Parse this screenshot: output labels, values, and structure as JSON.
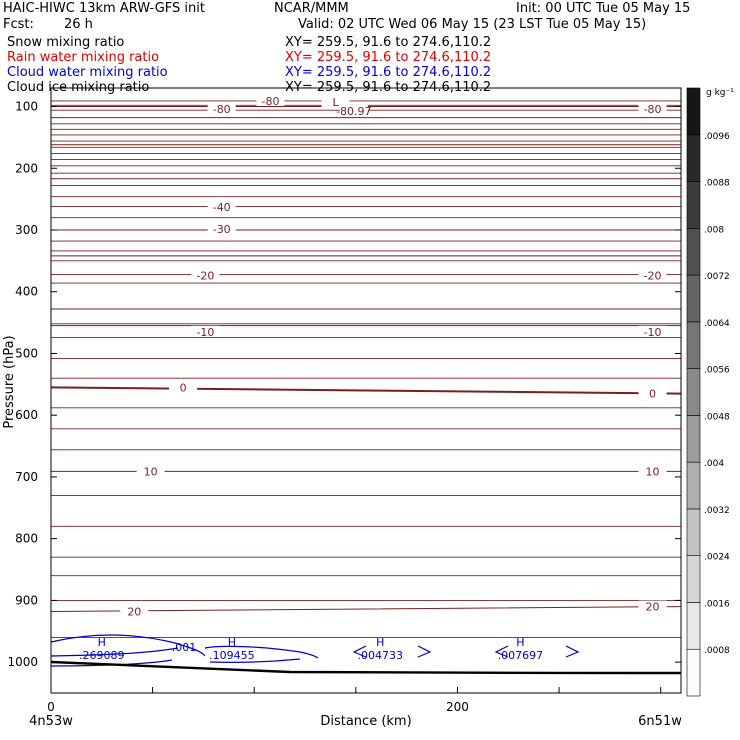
{
  "header": {
    "model": "HAIC-HIWC 13km ARW-GFS init",
    "org": "NCAR/MMM",
    "init": "Init: 00 UTC Tue 05 May 15",
    "fcst_label": "Fcst:",
    "fcst_value": "26 h",
    "valid": "Valid: 02 UTC Wed 06 May 15 (23 LST Tue 05 May 15)"
  },
  "fields": [
    {
      "name": "Snow mixing ratio",
      "xy": "XY= 259.5, 91.6 to 274.6,110.2",
      "color": "#000000"
    },
    {
      "name": "Rain water mixing ratio",
      "xy": "XY= 259.5, 91.6 to 274.6,110.2",
      "color": "#e00000"
    },
    {
      "name": "Cloud water mixing ratio",
      "xy": "XY= 259.5, 91.6 to 274.6,110.2",
      "color": "#0000e0"
    },
    {
      "name": "Cloud ice mixing ratio",
      "xy": "XY= 259.5, 91.6 to 274.6,110.2",
      "color": "#000000"
    }
  ],
  "colorbar": {
    "unit": "g kg⁻¹",
    "labels": [
      ".0008",
      ".0016",
      ".0024",
      ".0032",
      ".004",
      ".0048",
      ".0056",
      ".0064",
      ".0072",
      ".008",
      ".0088",
      ".0096"
    ]
  },
  "chart_data": {
    "type": "line",
    "title": "",
    "xlabel": "Distance (km)",
    "ylabel": "Pressure (hPa)",
    "xlim": [
      0,
      310
    ],
    "ylim": [
      1050,
      70
    ],
    "x_ticks": [
      "0",
      "200"
    ],
    "y_ticks": [
      "100",
      "200",
      "300",
      "400",
      "500",
      "600",
      "700",
      "800",
      "900",
      "1000"
    ],
    "x_endpoints": {
      "left": "4n53w",
      "right": "6n51w"
    },
    "temperature_contours": [
      {
        "label": "-80",
        "p": [
          100,
          100
        ]
      },
      {
        "label": "-40",
        "p": [
          162,
          162
        ]
      },
      {
        "label": "-30",
        "p": [
          217,
          217
        ]
      },
      {
        "label": "-20",
        "p": [
          342,
          342
        ]
      },
      {
        "label": "-10",
        "p": [
          455,
          455
        ]
      },
      {
        "label": "0",
        "p": [
          555,
          565
        ]
      },
      {
        "label": "10",
        "p": [
          691,
          691
        ]
      },
      {
        "label": "20",
        "p": [
          918,
          910
        ]
      }
    ],
    "contour_labels": [
      {
        "text": "-80",
        "x": 108,
        "p": 91
      },
      {
        "text": "-80",
        "x": 84,
        "p": 104
      },
      {
        "text": "-80",
        "x": 296,
        "p": 104
      },
      {
        "text": "L",
        "x": 140,
        "p": 93
      },
      {
        "text": "-80.97",
        "x": 149,
        "p": 107
      },
      {
        "text": "-40",
        "x": 84,
        "p": 263
      },
      {
        "text": "-30",
        "x": 84,
        "p": 298
      },
      {
        "text": "-20",
        "x": 76,
        "p": 374
      },
      {
        "text": "-20",
        "x": 296,
        "p": 374
      },
      {
        "text": "-10",
        "x": 76,
        "p": 465
      },
      {
        "text": "-10",
        "x": 296,
        "p": 465
      },
      {
        "text": "0",
        "x": 65,
        "p": 555
      },
      {
        "text": "0",
        "x": 296,
        "p": 565
      },
      {
        "text": "10",
        "x": 49,
        "p": 691
      },
      {
        "text": "10",
        "x": 296,
        "p": 691
      },
      {
        "text": "20",
        "x": 41,
        "p": 918
      },
      {
        "text": "20",
        "x": 296,
        "p": 910
      }
    ],
    "cloud_water_extrema": [
      {
        "label": "H",
        "value": ".269089",
        "x": 25
      },
      {
        "label": "H",
        "value": ".109455",
        "x": 89
      },
      {
        "label": "H",
        "value": ".004733",
        "x": 162
      },
      {
        "label": "H",
        "value": ".007697",
        "x": 231
      }
    ],
    "cloud_water_contour_label": ".001"
  }
}
